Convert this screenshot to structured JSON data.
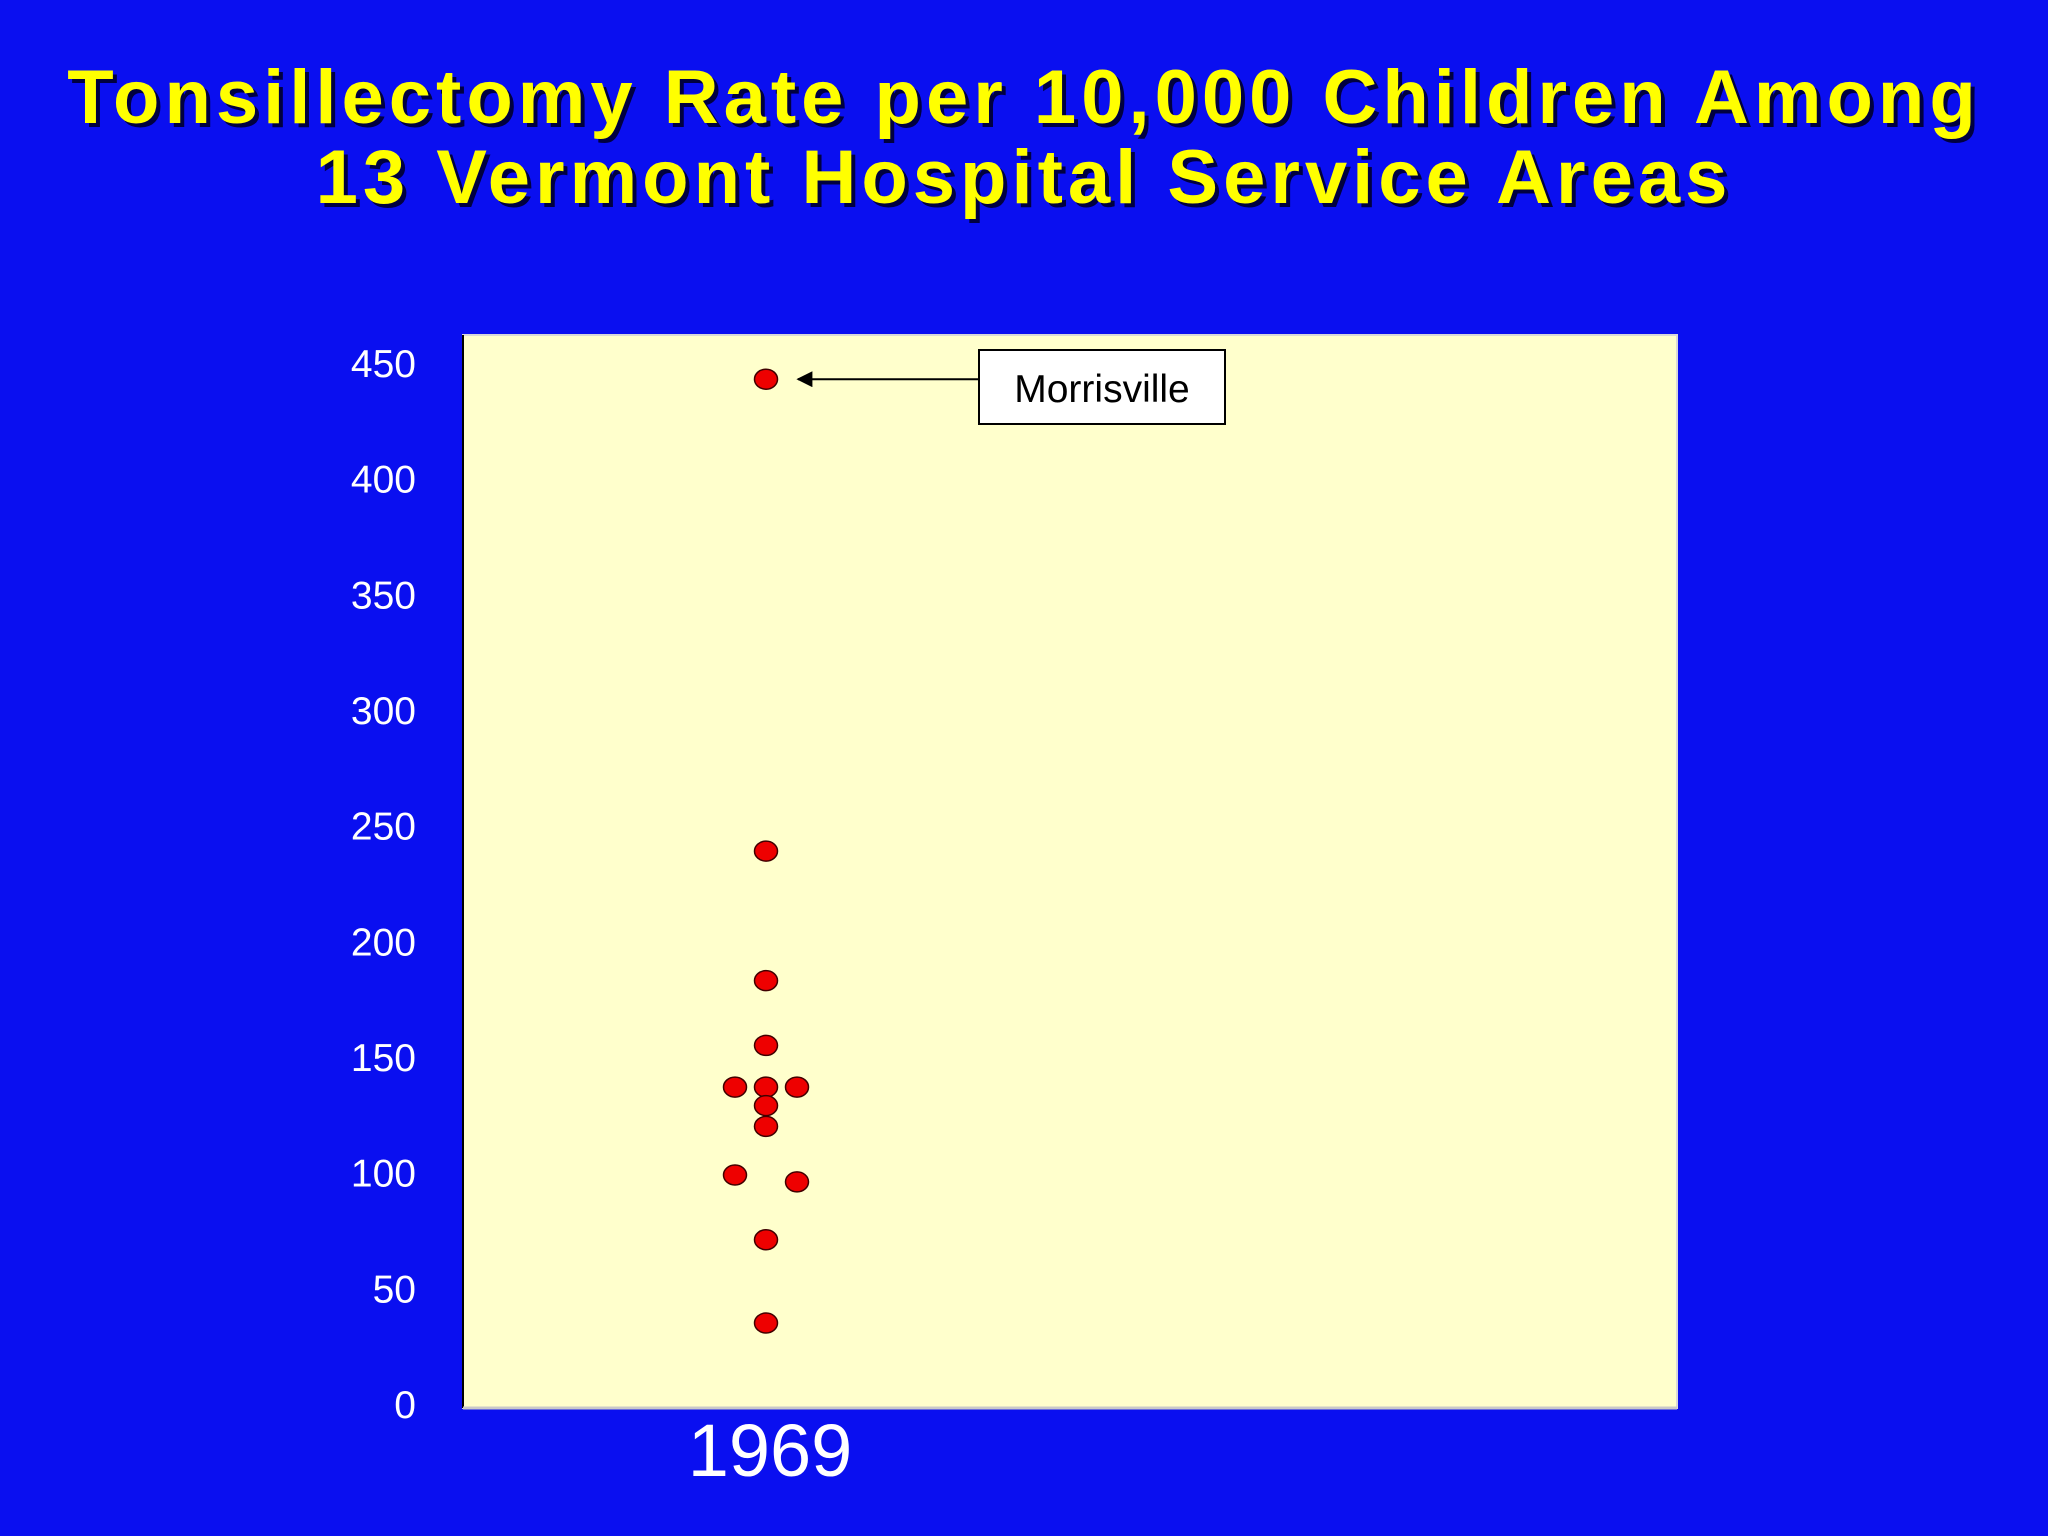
{
  "title": {
    "line1": "Tonsillectomy Rate per 10,000 Children Among",
    "line2": "13 Vermont Hospital Service Areas"
  },
  "colors": {
    "background": "#0a0ff0",
    "title": "#ffff00",
    "plot_area": "#ffffcc",
    "point_fill": "#ee0000",
    "axis_text": "#ffffff"
  },
  "chart_data": {
    "type": "scatter",
    "title": "Tonsillectomy Rate per 10,000 Children Among 13 Vermont Hospital Service Areas",
    "xlabel": "",
    "ylabel": "",
    "categories": [
      "1969"
    ],
    "ylim": [
      0,
      450
    ],
    "yticks": [
      0,
      50,
      100,
      150,
      200,
      250,
      300,
      350,
      400,
      450
    ],
    "grid": false,
    "legend": "none",
    "points": [
      {
        "category": "1969",
        "value": 443,
        "jitter": 0
      },
      {
        "category": "1969",
        "value": 239,
        "jitter": 0
      },
      {
        "category": "1969",
        "value": 183,
        "jitter": 0
      },
      {
        "category": "1969",
        "value": 155,
        "jitter": 0
      },
      {
        "category": "1969",
        "value": 137,
        "jitter": -1
      },
      {
        "category": "1969",
        "value": 137,
        "jitter": 0
      },
      {
        "category": "1969",
        "value": 137,
        "jitter": 1
      },
      {
        "category": "1969",
        "value": 129,
        "jitter": 0
      },
      {
        "category": "1969",
        "value": 120,
        "jitter": 0
      },
      {
        "category": "1969",
        "value": 99,
        "jitter": -1
      },
      {
        "category": "1969",
        "value": 96,
        "jitter": 1
      },
      {
        "category": "1969",
        "value": 71,
        "jitter": 0
      },
      {
        "category": "1969",
        "value": 35,
        "jitter": 0
      }
    ],
    "annotations": [
      {
        "text": "Morrisville",
        "target_value": 443,
        "target_category": "1969"
      }
    ]
  }
}
